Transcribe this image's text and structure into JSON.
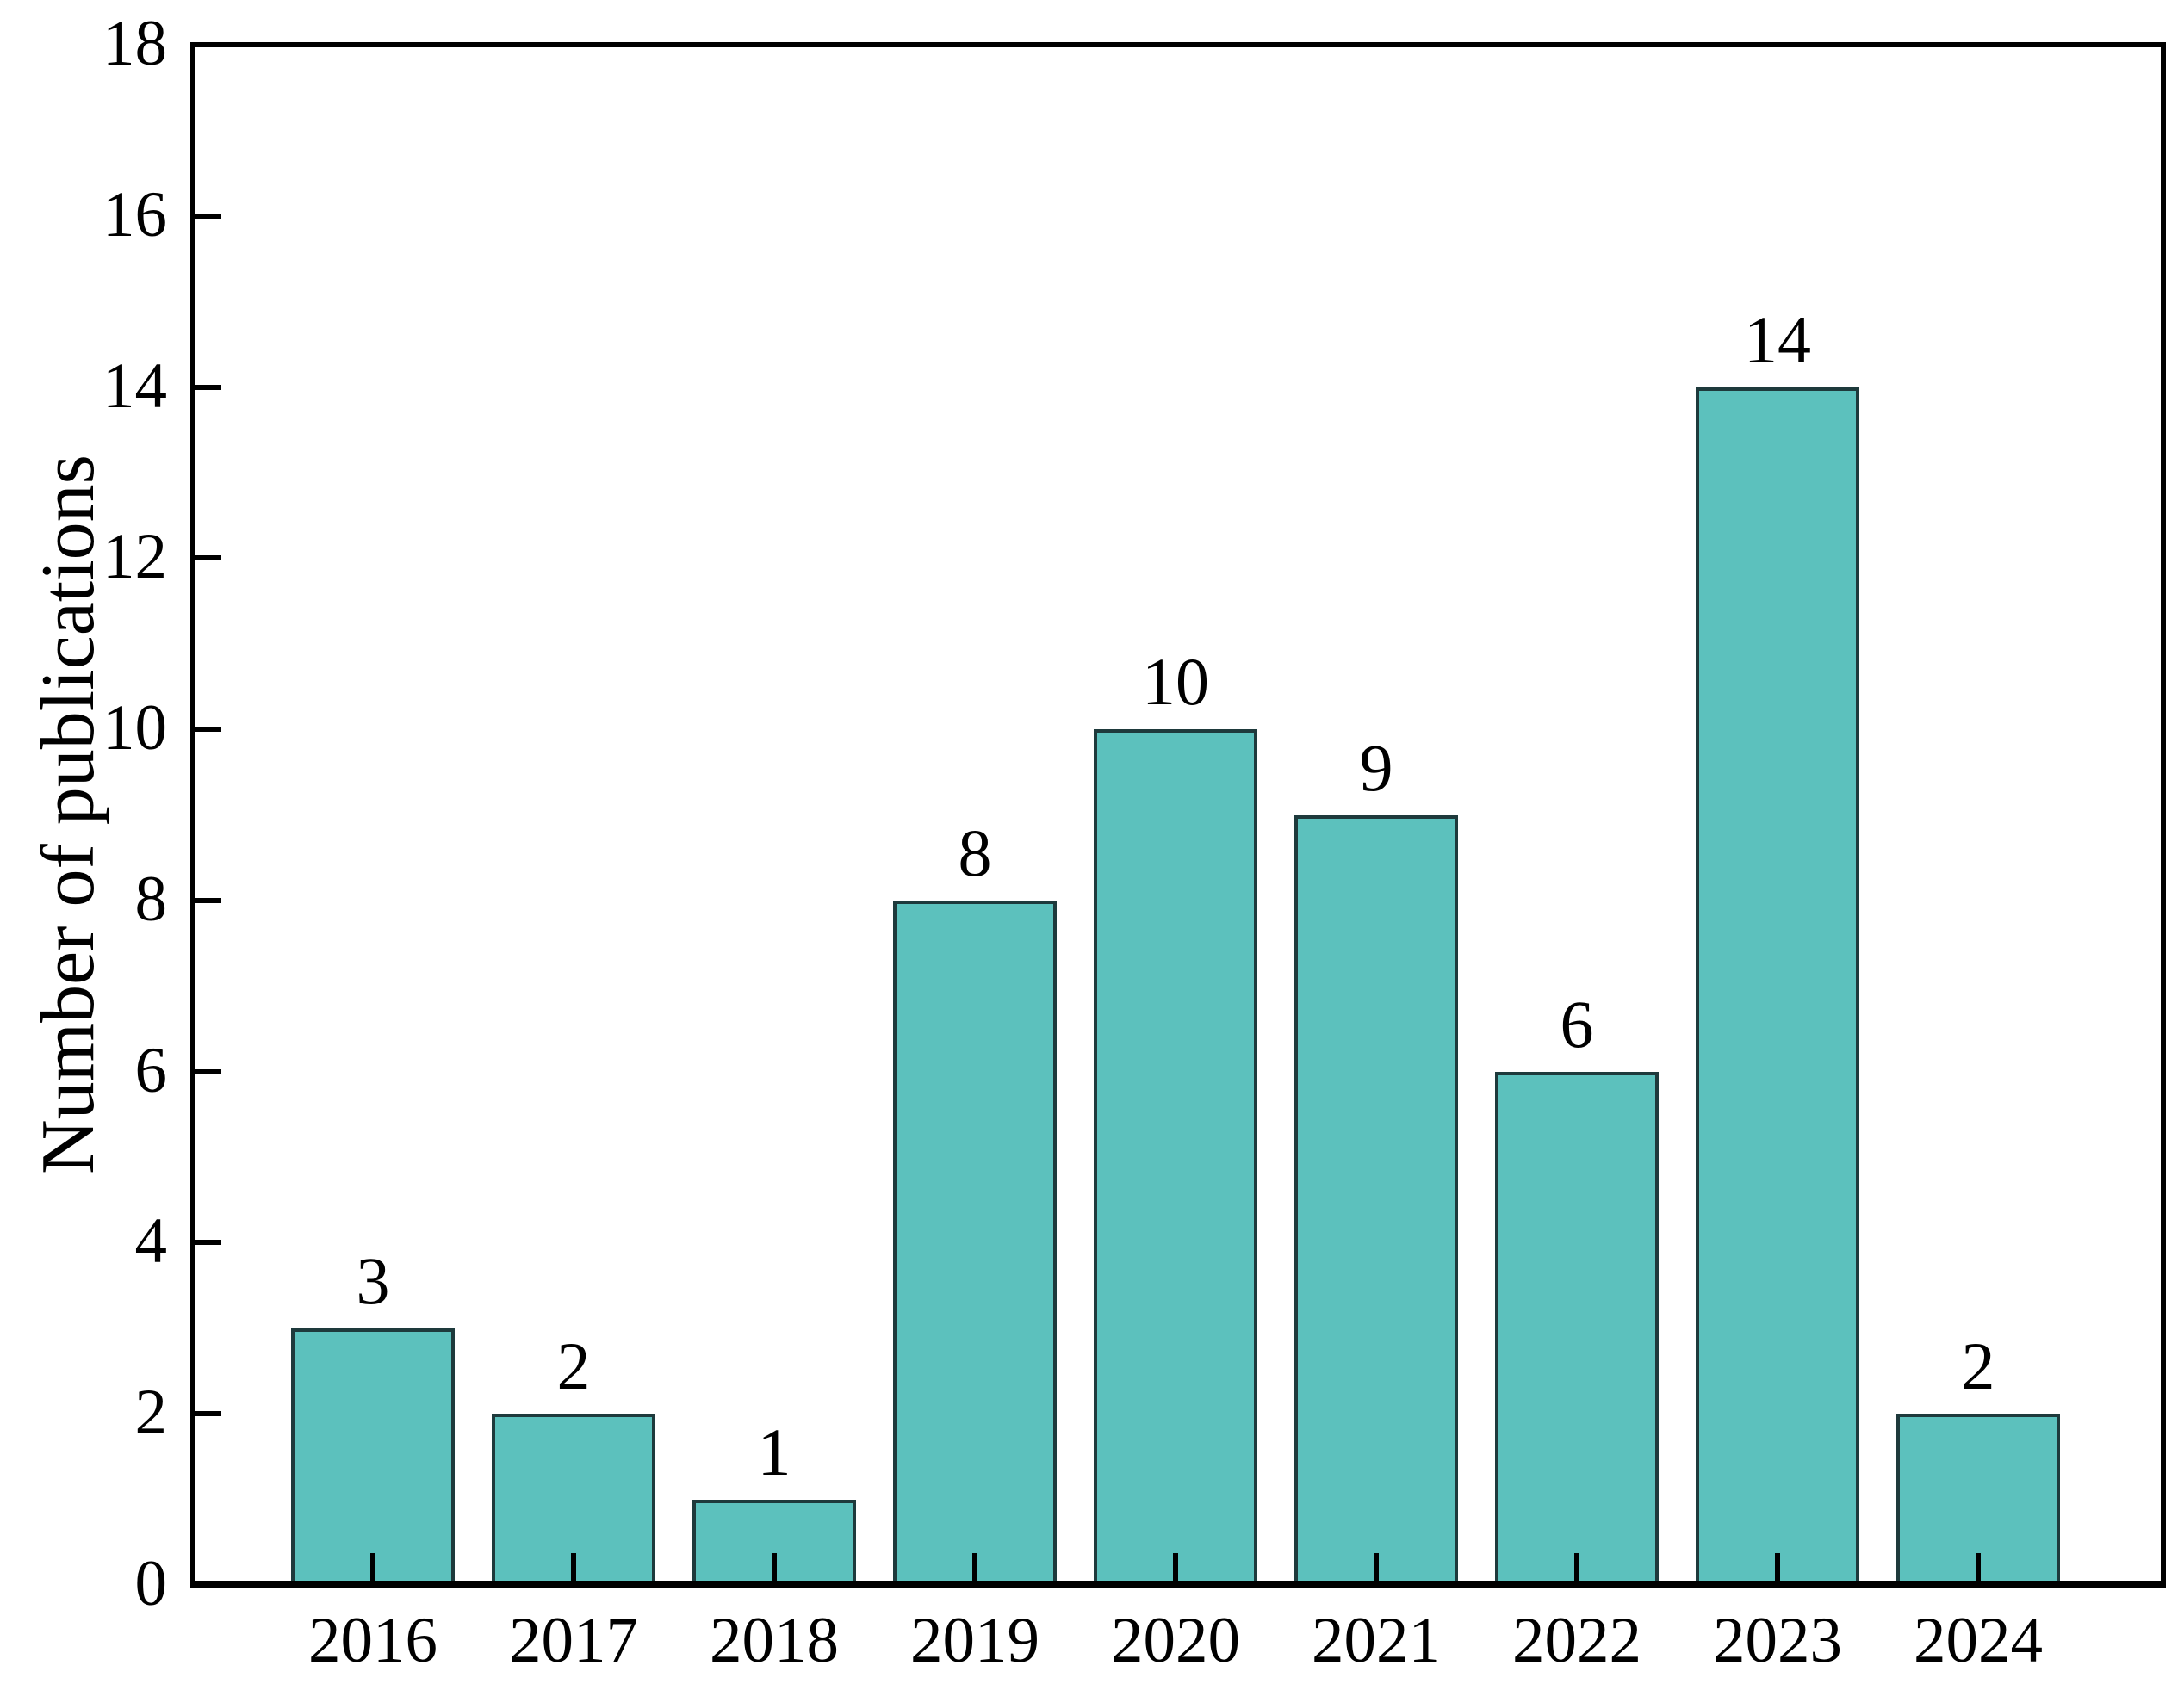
{
  "figure": {
    "background_color": "#ffffff",
    "bar_fill_color": "#5cc1bd",
    "bar_edge_color": "#1e3a3c",
    "axis_color": "#000000",
    "text_color": "#000000"
  },
  "chart_data": {
    "type": "bar",
    "title": "",
    "xlabel": "",
    "ylabel": "Number of publications",
    "categories": [
      "2016",
      "2017",
      "2018",
      "2019",
      "2020",
      "2021",
      "2022",
      "2023",
      "2024"
    ],
    "values": [
      3,
      2,
      1,
      8,
      10,
      9,
      6,
      14,
      2
    ],
    "bar_value_labels": [
      "3",
      "2",
      "1",
      "8",
      "10",
      "9",
      "6",
      "14",
      "2"
    ],
    "ylim": [
      0,
      18
    ],
    "ytick_step": 2,
    "ytick_labels": [
      "0",
      "2",
      "4",
      "6",
      "8",
      "10",
      "12",
      "14",
      "16",
      "18"
    ],
    "grid": false,
    "legend_position": "none",
    "tick_direction": "in"
  }
}
